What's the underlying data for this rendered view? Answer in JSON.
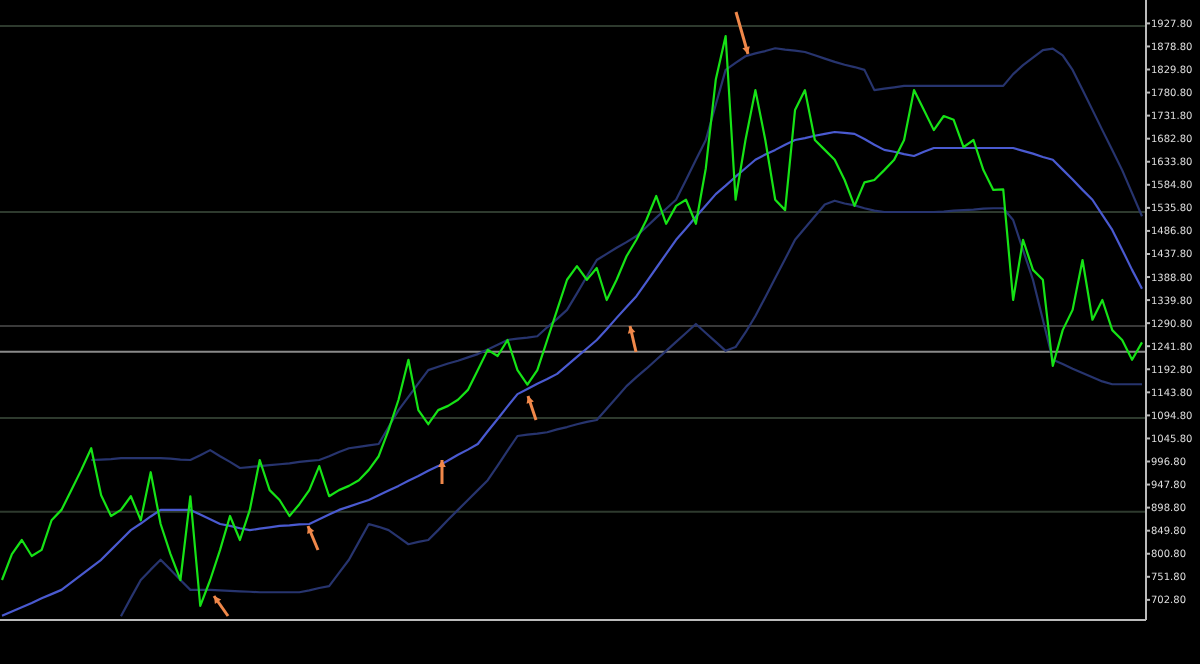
{
  "chart_data": {
    "type": "line",
    "ylim": [
      660,
      1977.5
    ],
    "tick_labels": "y",
    "grid": false,
    "categories": [
      null,
      null,
      null,
      null,
      null,
      null,
      null,
      null,
      null,
      null,
      null,
      null,
      null,
      null,
      null,
      null,
      null,
      null,
      null,
      null,
      null,
      null,
      null,
      null,
      null,
      null,
      null,
      null,
      null,
      null,
      null,
      null,
      null,
      null,
      null,
      null,
      null,
      null,
      null,
      null,
      null,
      null,
      null,
      null,
      null,
      null,
      null,
      null,
      null,
      null,
      null,
      null,
      null,
      null,
      null,
      null,
      null,
      null,
      null,
      null,
      null,
      null,
      null,
      null,
      null,
      null,
      null,
      null,
      null,
      null,
      null,
      null,
      null,
      null,
      null,
      null,
      null,
      null,
      null,
      null,
      null,
      null,
      null,
      null,
      null,
      null,
      null,
      null,
      null,
      null,
      null,
      null,
      null,
      null,
      null,
      null,
      null,
      null,
      null,
      null,
      null,
      null,
      null,
      null,
      null,
      null,
      null,
      null,
      null,
      null,
      null,
      null,
      null,
      null,
      null,
      null
    ],
    "yticks": [
      {
        "value": 1927.8,
        "label": "1927.80"
      },
      {
        "value": 1878.8,
        "label": "1878.80"
      },
      {
        "value": 1829.8,
        "label": "1829.80"
      },
      {
        "value": 1780.8,
        "label": "1780.80"
      },
      {
        "value": 1731.8,
        "label": "1731.80"
      },
      {
        "value": 1682.8,
        "label": "1682.80"
      },
      {
        "value": 1633.8,
        "label": "1633.80"
      },
      {
        "value": 1584.8,
        "label": "1584.80"
      },
      {
        "value": 1535.8,
        "label": "1535.80"
      },
      {
        "value": 1486.8,
        "label": "1486.80"
      },
      {
        "value": 1437.8,
        "label": "1437.80"
      },
      {
        "value": 1388.8,
        "label": "1388.80"
      },
      {
        "value": 1339.8,
        "label": "1339.80"
      },
      {
        "value": 1290.8,
        "label": "1290.80"
      },
      {
        "value": 1241.8,
        "label": "1241.80"
      },
      {
        "value": 1192.8,
        "label": "1192.80"
      },
      {
        "value": 1143.8,
        "label": "1143.80"
      },
      {
        "value": 1094.8,
        "label": "1094.80"
      },
      {
        "value": 1045.8,
        "label": "1045.80"
      },
      {
        "value": 996.8,
        "label": "996.80"
      },
      {
        "value": 947.8,
        "label": "947.80"
      },
      {
        "value": 898.8,
        "label": "898.80"
      },
      {
        "value": 849.8,
        "label": "849.80"
      },
      {
        "value": 800.8,
        "label": "800.80"
      },
      {
        "value": 751.8,
        "label": "751.80"
      },
      {
        "value": 702.8,
        "label": "702.80"
      }
    ],
    "ref_lines": [
      {
        "axis": "y",
        "value": 1922,
        "color": "#2e3a2e"
      },
      {
        "axis": "y",
        "value": 1527,
        "color": "#2e3a2e"
      },
      {
        "axis": "y",
        "value": 1285,
        "color": "#3a3a3a"
      },
      {
        "axis": "y",
        "value": 1230,
        "color": "#8a8a8a"
      },
      {
        "axis": "y",
        "value": 1089,
        "color": "#2e3a2e"
      },
      {
        "axis": "y",
        "value": 890,
        "color": "#2e3a2e"
      }
    ],
    "series": [
      {
        "color": "#27346e",
        "values": [
          null,
          null,
          null,
          null,
          null,
          null,
          null,
          null,
          null,
          1000,
          1001,
          1002,
          1004,
          1004,
          1004,
          1004,
          1004,
          1003,
          1001,
          1000,
          1010,
          1021,
          1008,
          996,
          983,
          985,
          987,
          989,
          991,
          993,
          996,
          998,
          1000,
          1008,
          1017,
          1025,
          1028,
          1031,
          1034,
          1070,
          1106,
          1134,
          1163,
          1191,
          1198,
          1205,
          1211,
          1218,
          1225,
          1235,
          1245,
          1255,
          1258,
          1260,
          1263,
          1282,
          1300,
          1319,
          1354,
          1390,
          1425,
          1438,
          1451,
          1463,
          1476,
          1495,
          1515,
          1534,
          1553,
          1595,
          1638,
          1680,
          1755,
          1829,
          1844,
          1858,
          1864,
          1869,
          1875,
          1872,
          1870,
          1867,
          1860,
          1853,
          1846,
          1840,
          1835,
          1829,
          1786,
          1789,
          1792,
          1795,
          1795,
          1795,
          1795,
          1795,
          1795,
          1795,
          1795,
          1795,
          1795,
          1795,
          1820,
          1839,
          1855,
          1871,
          1874,
          1860,
          1829,
          1787,
          1744,
          1701,
          1659,
          1616,
          1567,
          1518
        ]
      },
      {
        "color": "#27346e",
        "values": [
          null,
          null,
          null,
          null,
          null,
          null,
          null,
          null,
          null,
          null,
          null,
          null,
          668,
          707,
          745,
          767,
          788,
          767,
          745,
          724,
          724,
          724,
          723,
          722,
          721,
          720,
          719,
          719,
          719,
          719,
          719,
          723,
          728,
          732,
          760,
          788,
          826,
          864,
          858,
          851,
          836,
          821,
          826,
          830,
          851,
          873,
          894,
          915,
          936,
          957,
          988,
          1020,
          1051,
          1054,
          1056,
          1059,
          1065,
          1070,
          1076,
          1081,
          1085,
          1109,
          1133,
          1157,
          1176,
          1194,
          1213,
          1232,
          1251,
          1270,
          1289,
          1270,
          1251,
          1232,
          1240,
          1271,
          1306,
          1346,
          1387,
          1427,
          1468,
          1493,
          1518,
          1543,
          1551,
          1545,
          1541,
          1535,
          1530,
          1527,
          1527,
          1527,
          1527,
          1527,
          1527,
          1528,
          1530,
          1531,
          1532,
          1534,
          1535,
          1535,
          1510,
          1446,
          1383,
          1298,
          1213,
          1204,
          1194,
          1185,
          1176,
          1167,
          1161,
          1161,
          1161,
          1161
        ]
      },
      {
        "color": "#4a5ad0",
        "values": [
          669,
          678,
          687,
          696,
          706,
          715,
          724,
          740,
          756,
          772,
          788,
          809,
          830,
          851,
          865,
          880,
          894,
          894,
          894,
          894,
          884,
          874,
          864,
          860,
          855,
          851,
          854,
          857,
          860,
          861,
          863,
          864,
          874,
          884,
          894,
          901,
          908,
          915,
          925,
          935,
          945,
          956,
          966,
          977,
          987,
          999,
          1011,
          1022,
          1034,
          1061,
          1087,
          1114,
          1140,
          1151,
          1162,
          1172,
          1183,
          1201,
          1219,
          1237,
          1255,
          1278,
          1302,
          1325,
          1348,
          1378,
          1408,
          1438,
          1468,
          1492,
          1517,
          1541,
          1565,
          1583,
          1602,
          1620,
          1638,
          1649,
          1659,
          1670,
          1680,
          1684,
          1689,
          1693,
          1697,
          1695,
          1693,
          1682,
          1670,
          1659,
          1655,
          1650,
          1646,
          1655,
          1663,
          1663,
          1663,
          1663,
          1663,
          1663,
          1663,
          1663,
          1663,
          1657,
          1651,
          1644,
          1638,
          1617,
          1596,
          1574,
          1553,
          1521,
          1489,
          1447,
          1404,
          1364
        ]
      },
      {
        "color": "#16e316",
        "values": [
          745,
          800,
          830,
          796,
          809,
          872,
          894,
          936,
          979,
          1025,
          925,
          881,
          894,
          923,
          872,
          974,
          864,
          800,
          745,
          923,
          690,
          745,
          809,
          881,
          830,
          894,
          1000,
          936,
          915,
          881,
          906,
          936,
          987,
          923,
          936,
          945,
          957,
          979,
          1008,
          1064,
          1128,
          1213,
          1106,
          1076,
          1106,
          1115,
          1128,
          1149,
          1191,
          1234,
          1221,
          1255,
          1191,
          1160,
          1191,
          1255,
          1319,
          1383,
          1412,
          1383,
          1408,
          1340,
          1383,
          1433,
          1468,
          1510,
          1561,
          1502,
          1540,
          1553,
          1502,
          1620,
          1808,
          1901,
          1553,
          1680,
          1786,
          1680,
          1553,
          1531,
          1744,
          1786,
          1680,
          1659,
          1638,
          1595,
          1540,
          1590,
          1595,
          1616,
          1638,
          1680,
          1786,
          1744,
          1701,
          1731,
          1723,
          1665,
          1680,
          1616,
          1574,
          1575,
          1340,
          1468,
          1404,
          1383,
          1200,
          1276,
          1319,
          1425,
          1298,
          1340,
          1276,
          1255,
          1213,
          1250
        ]
      }
    ]
  }
}
